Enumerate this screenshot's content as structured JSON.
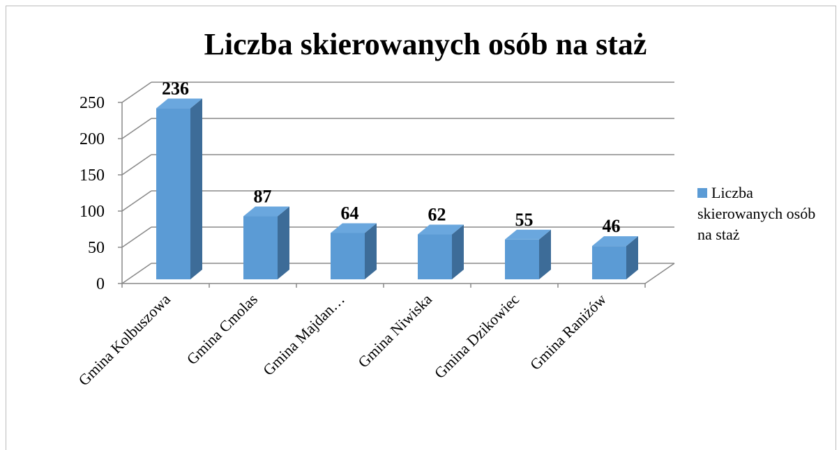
{
  "chart_data": {
    "type": "bar3d",
    "title": "Liczba skierowanych osób na staż",
    "categories": [
      "Gmina Kolbuszowa",
      "Gmina Cmolas",
      "Gmina Majdan…",
      "Gmina Niwiska",
      "Gmina Dzikowiec",
      "Gmina Raniżów"
    ],
    "series": [
      {
        "name": "Liczba skierowanych osób na staż",
        "color": "#5b9bd5",
        "values": [
          236,
          87,
          64,
          62,
          55,
          46
        ]
      }
    ],
    "ylim": [
      0,
      250
    ],
    "yticks": [
      0,
      50,
      100,
      150,
      200,
      250
    ],
    "grid": true,
    "legend": "right"
  }
}
